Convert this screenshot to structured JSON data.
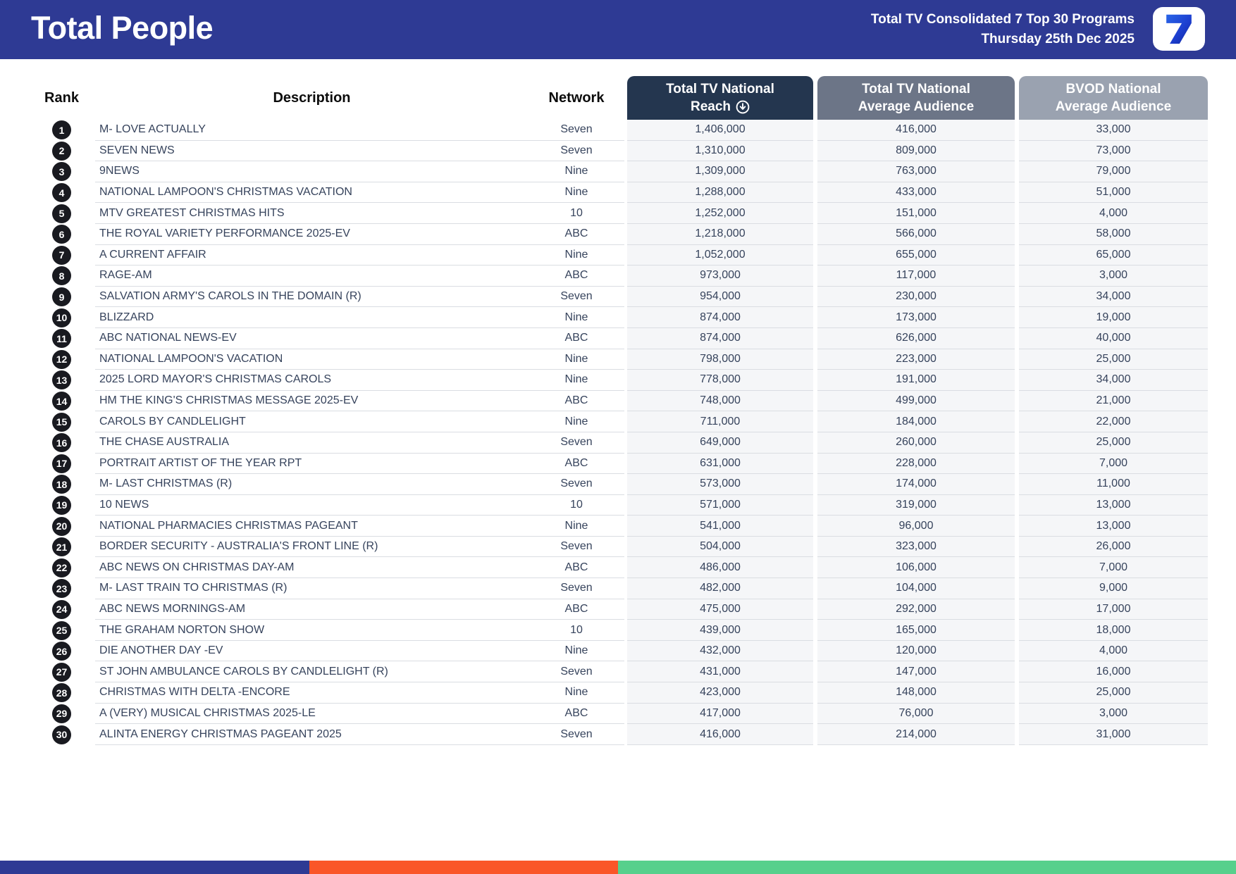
{
  "header": {
    "title": "Total People",
    "subtitle_line1": "Total TV Consolidated 7 Top 30 Programs",
    "subtitle_line2": "Thursday 25th Dec 2025",
    "logo": "seven-network-7-logo",
    "banner_color": "#2e3a94"
  },
  "table": {
    "columns": {
      "rank": "Rank",
      "description": "Description",
      "network": "Network",
      "reach": {
        "line1": "Total TV National",
        "line2": "Reach"
      },
      "avg": {
        "line1": "Total TV National",
        "line2": "Average Audience"
      },
      "bvod": {
        "line1": "BVOD National",
        "line2": "Average Audience"
      }
    },
    "sort": {
      "column": "Total TV National Reach",
      "direction": "descending",
      "icon": "circle-arrow-down-icon"
    },
    "header_colors": {
      "reach": "#24364f",
      "avg": "#6c7587",
      "bvod": "#9aa2b0"
    },
    "rows": [
      {
        "rank": "1",
        "description": "M- LOVE ACTUALLY",
        "network": "Seven",
        "reach": "1,406,000",
        "avg_audience": "416,000",
        "bvod_audience": "33,000"
      },
      {
        "rank": "2",
        "description": "SEVEN NEWS",
        "network": "Seven",
        "reach": "1,310,000",
        "avg_audience": "809,000",
        "bvod_audience": "73,000"
      },
      {
        "rank": "3",
        "description": "9NEWS",
        "network": "Nine",
        "reach": "1,309,000",
        "avg_audience": "763,000",
        "bvod_audience": "79,000"
      },
      {
        "rank": "4",
        "description": "NATIONAL LAMPOON'S CHRISTMAS VACATION",
        "network": "Nine",
        "reach": "1,288,000",
        "avg_audience": "433,000",
        "bvod_audience": "51,000"
      },
      {
        "rank": "5",
        "description": "MTV GREATEST CHRISTMAS HITS",
        "network": "10",
        "reach": "1,252,000",
        "avg_audience": "151,000",
        "bvod_audience": "4,000"
      },
      {
        "rank": "6",
        "description": "THE ROYAL VARIETY PERFORMANCE 2025-EV",
        "network": "ABC",
        "reach": "1,218,000",
        "avg_audience": "566,000",
        "bvod_audience": "58,000"
      },
      {
        "rank": "7",
        "description": "A CURRENT AFFAIR",
        "network": "Nine",
        "reach": "1,052,000",
        "avg_audience": "655,000",
        "bvod_audience": "65,000"
      },
      {
        "rank": "8",
        "description": "RAGE-AM",
        "network": "ABC",
        "reach": "973,000",
        "avg_audience": "117,000",
        "bvod_audience": "3,000"
      },
      {
        "rank": "9",
        "description": "SALVATION ARMY'S CAROLS IN THE DOMAIN (R)",
        "network": "Seven",
        "reach": "954,000",
        "avg_audience": "230,000",
        "bvod_audience": "34,000"
      },
      {
        "rank": "10",
        "description": "BLIZZARD",
        "network": "Nine",
        "reach": "874,000",
        "avg_audience": "173,000",
        "bvod_audience": "19,000"
      },
      {
        "rank": "11",
        "description": "ABC NATIONAL NEWS-EV",
        "network": "ABC",
        "reach": "874,000",
        "avg_audience": "626,000",
        "bvod_audience": "40,000"
      },
      {
        "rank": "12",
        "description": "NATIONAL LAMPOON'S VACATION",
        "network": "Nine",
        "reach": "798,000",
        "avg_audience": "223,000",
        "bvod_audience": "25,000"
      },
      {
        "rank": "13",
        "description": "2025 LORD MAYOR'S CHRISTMAS CAROLS",
        "network": "Nine",
        "reach": "778,000",
        "avg_audience": "191,000",
        "bvod_audience": "34,000"
      },
      {
        "rank": "14",
        "description": "HM THE KING'S CHRISTMAS MESSAGE 2025-EV",
        "network": "ABC",
        "reach": "748,000",
        "avg_audience": "499,000",
        "bvod_audience": "21,000"
      },
      {
        "rank": "15",
        "description": "CAROLS BY CANDLELIGHT",
        "network": "Nine",
        "reach": "711,000",
        "avg_audience": "184,000",
        "bvod_audience": "22,000"
      },
      {
        "rank": "16",
        "description": "THE CHASE AUSTRALIA",
        "network": "Seven",
        "reach": "649,000",
        "avg_audience": "260,000",
        "bvod_audience": "25,000"
      },
      {
        "rank": "17",
        "description": "PORTRAIT ARTIST OF THE YEAR RPT",
        "network": "ABC",
        "reach": "631,000",
        "avg_audience": "228,000",
        "bvod_audience": "7,000"
      },
      {
        "rank": "18",
        "description": "M- LAST CHRISTMAS (R)",
        "network": "Seven",
        "reach": "573,000",
        "avg_audience": "174,000",
        "bvod_audience": "11,000"
      },
      {
        "rank": "19",
        "description": "10 NEWS",
        "network": "10",
        "reach": "571,000",
        "avg_audience": "319,000",
        "bvod_audience": "13,000"
      },
      {
        "rank": "20",
        "description": "NATIONAL PHARMACIES CHRISTMAS PAGEANT",
        "network": "Nine",
        "reach": "541,000",
        "avg_audience": "96,000",
        "bvod_audience": "13,000"
      },
      {
        "rank": "21",
        "description": "BORDER SECURITY - AUSTRALIA'S FRONT LINE (R)",
        "network": "Seven",
        "reach": "504,000",
        "avg_audience": "323,000",
        "bvod_audience": "26,000"
      },
      {
        "rank": "22",
        "description": "ABC NEWS ON CHRISTMAS DAY-AM",
        "network": "ABC",
        "reach": "486,000",
        "avg_audience": "106,000",
        "bvod_audience": "7,000"
      },
      {
        "rank": "23",
        "description": "M- LAST TRAIN TO CHRISTMAS (R)",
        "network": "Seven",
        "reach": "482,000",
        "avg_audience": "104,000",
        "bvod_audience": "9,000"
      },
      {
        "rank": "24",
        "description": "ABC NEWS MORNINGS-AM",
        "network": "ABC",
        "reach": "475,000",
        "avg_audience": "292,000",
        "bvod_audience": "17,000"
      },
      {
        "rank": "25",
        "description": "THE GRAHAM NORTON SHOW",
        "network": "10",
        "reach": "439,000",
        "avg_audience": "165,000",
        "bvod_audience": "18,000"
      },
      {
        "rank": "26",
        "description": "DIE ANOTHER DAY -EV",
        "network": "Nine",
        "reach": "432,000",
        "avg_audience": "120,000",
        "bvod_audience": "4,000"
      },
      {
        "rank": "27",
        "description": "ST JOHN AMBULANCE CAROLS BY CANDLELIGHT (R)",
        "network": "Seven",
        "reach": "431,000",
        "avg_audience": "147,000",
        "bvod_audience": "16,000"
      },
      {
        "rank": "28",
        "description": "CHRISTMAS WITH DELTA -ENCORE",
        "network": "Nine",
        "reach": "423,000",
        "avg_audience": "148,000",
        "bvod_audience": "25,000"
      },
      {
        "rank": "29",
        "description": "A (VERY) MUSICAL CHRISTMAS 2025-LE",
        "network": "ABC",
        "reach": "417,000",
        "avg_audience": "76,000",
        "bvod_audience": "3,000"
      },
      {
        "rank": "30",
        "description": "ALINTA ENERGY CHRISTMAS PAGEANT 2025",
        "network": "Seven",
        "reach": "416,000",
        "avg_audience": "214,000",
        "bvod_audience": "31,000"
      }
    ]
  },
  "footer": {
    "segments": [
      {
        "name": "blue",
        "color": "#2e3a94",
        "width": "25%"
      },
      {
        "name": "orange",
        "color": "#fa5628",
        "width": "25%"
      },
      {
        "name": "green",
        "color": "#57d08c",
        "width": "50%"
      }
    ]
  }
}
